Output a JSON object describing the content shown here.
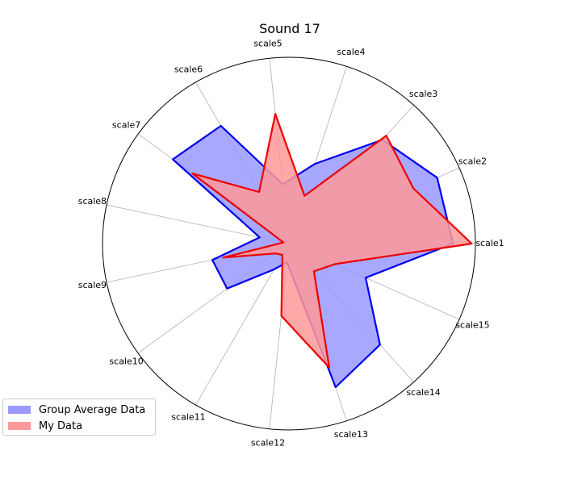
{
  "chart_data": {
    "type": "radar",
    "title": "Sound 17",
    "axes": [
      "scale1",
      "scale2",
      "scale3",
      "scale4",
      "scale5",
      "scale6",
      "scale7",
      "scale8",
      "scale9",
      "scale10",
      "scale11",
      "scale12",
      "scale13",
      "scale14",
      "scale15"
    ],
    "rmax": 10,
    "grid": true,
    "legend_position": "lower-left",
    "series": [
      {
        "name": "Group Average Data",
        "fill": "#9999ff",
        "stroke": "#0000ee",
        "values": [
          8.8,
          8.7,
          7.5,
          4.5,
          3.2,
          7.3,
          7.7,
          1.6,
          4.2,
          4.1,
          1.6,
          1.0,
          8.1,
          7.3,
          4.5
        ]
      },
      {
        "name": "My Data",
        "fill": "#ff9999",
        "stroke": "#ee0000",
        "values": [
          9.8,
          7.3,
          7.8,
          2.7,
          7.0,
          3.2,
          6.4,
          0.3,
          3.6,
          0.9,
          0.7,
          3.9,
          7.0,
          2.0,
          2.7
        ]
      }
    ]
  }
}
